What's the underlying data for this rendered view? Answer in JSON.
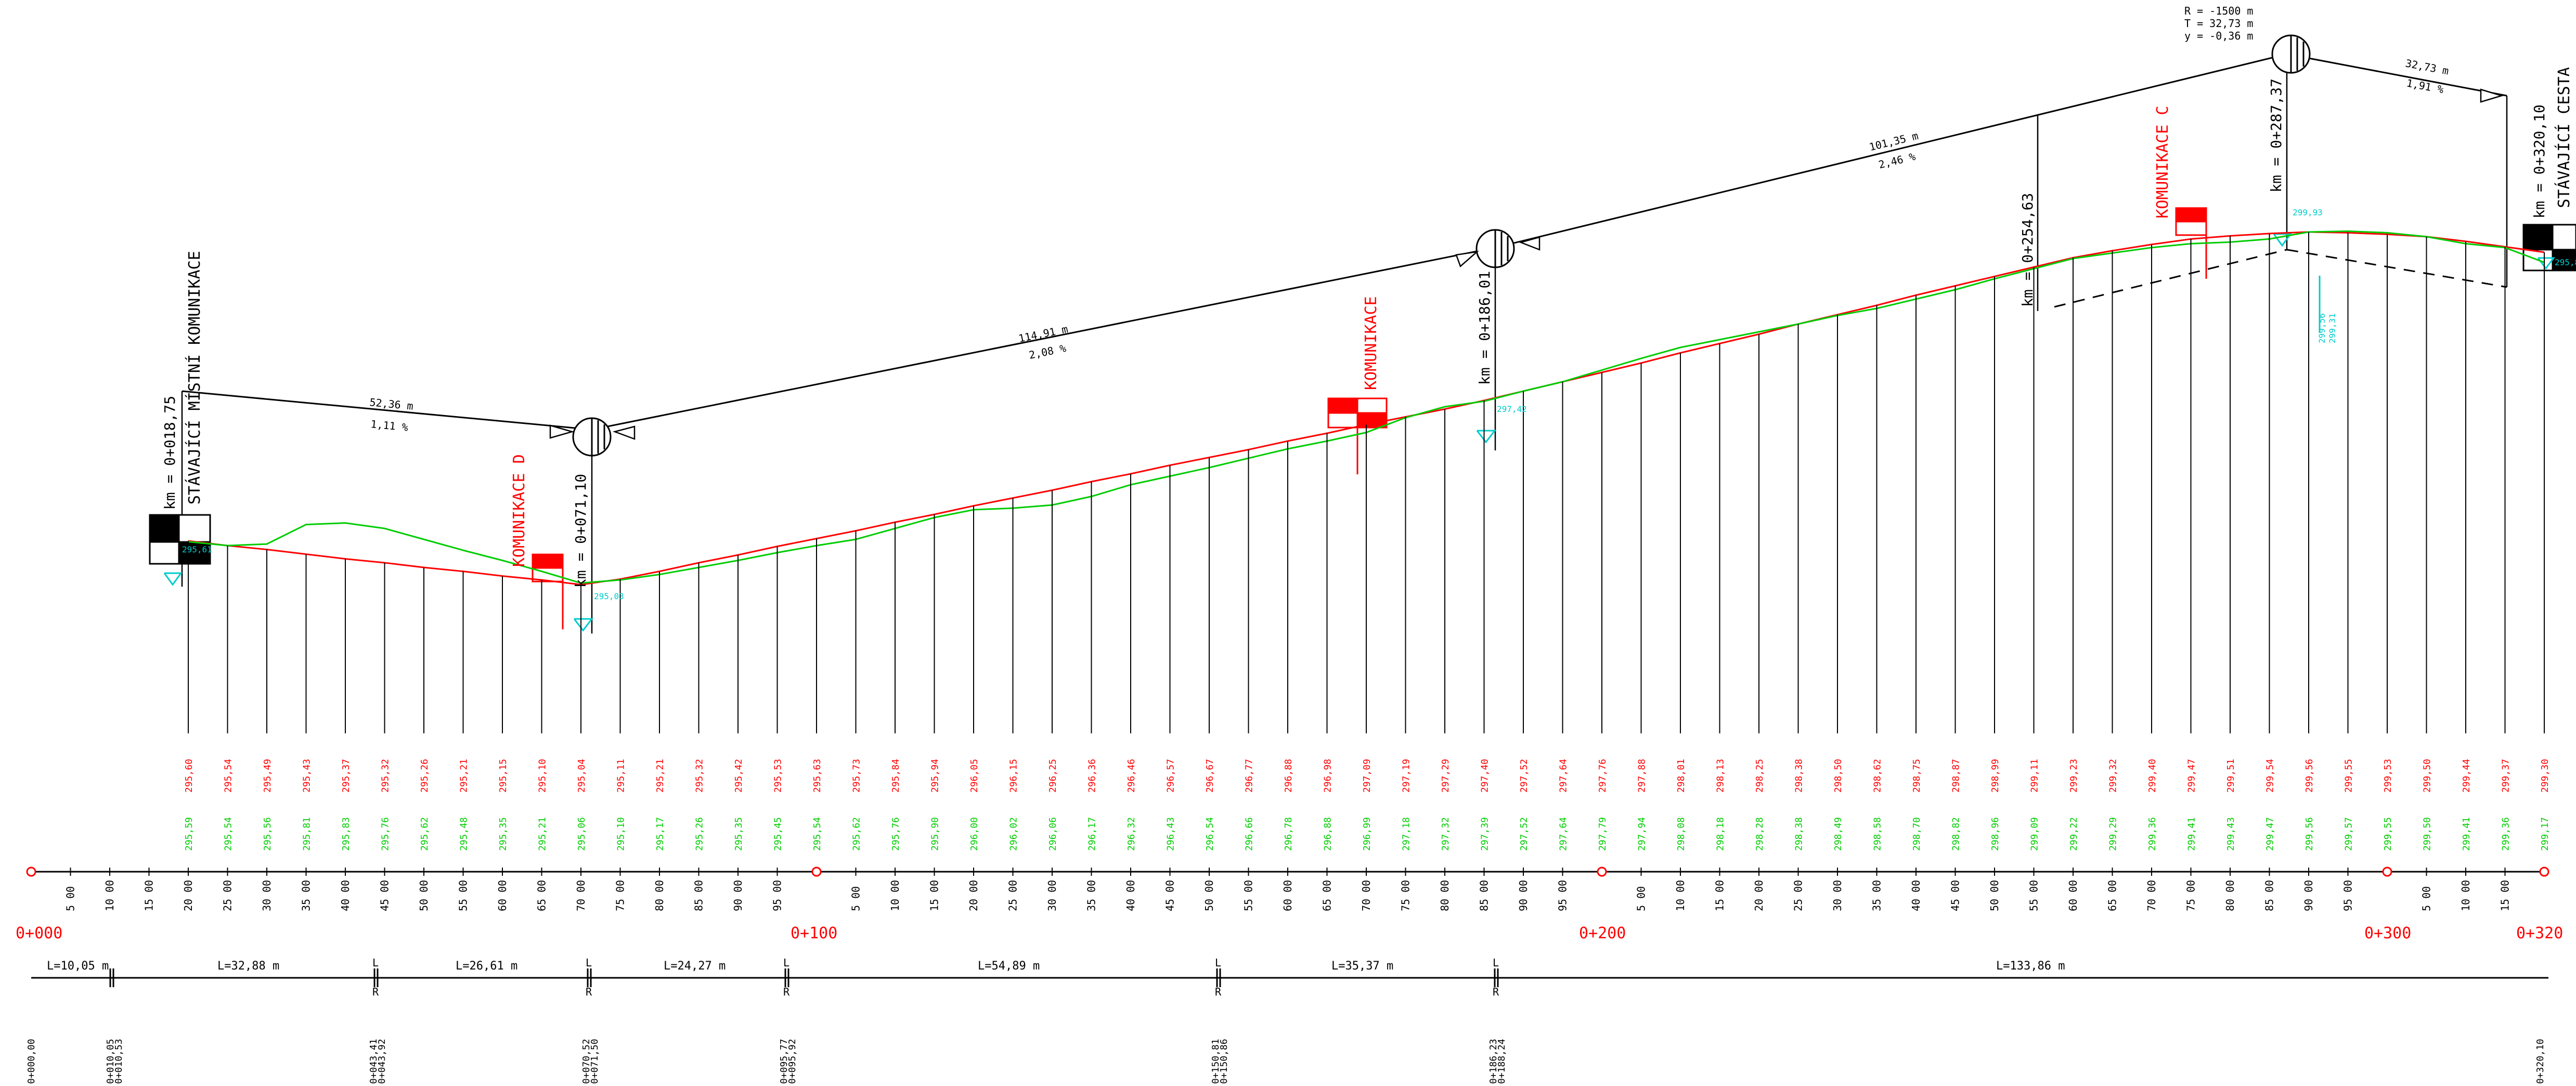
{
  "colors": {
    "line": "#000000",
    "design": "#ff0000",
    "terrain": "#00cc00",
    "cyan": "#00cccc",
    "stationing": "#ff0000"
  },
  "profile": {
    "stations": [
      20,
      25,
      30,
      35,
      40,
      45,
      50,
      55,
      60,
      65,
      70,
      75,
      80,
      85,
      90,
      95,
      100,
      105,
      110,
      115,
      120,
      125,
      130,
      135,
      140,
      145,
      150,
      155,
      160,
      165,
      170,
      175,
      180,
      185,
      190,
      195,
      200,
      205,
      210,
      215,
      220,
      225,
      230,
      235,
      240,
      245,
      250,
      255,
      260,
      265,
      270,
      275,
      280,
      285,
      290,
      295,
      300,
      305,
      310,
      315,
      320
    ],
    "design_elev": [
      "295,60",
      "295,54",
      "295,49",
      "295,43",
      "295,37",
      "295,32",
      "295,26",
      "295,21",
      "295,15",
      "295,10",
      "295,04",
      "295,11",
      "295,21",
      "295,32",
      "295,42",
      "295,53",
      "295,63",
      "295,73",
      "295,84",
      "295,94",
      "296,05",
      "296,15",
      "296,25",
      "296,36",
      "296,46",
      "296,57",
      "296,67",
      "296,77",
      "296,88",
      "296,98",
      "297,09",
      "297,19",
      "297,29",
      "297,40",
      "297,52",
      "297,64",
      "297,76",
      "297,88",
      "298,01",
      "298,13",
      "298,25",
      "298,38",
      "298,50",
      "298,62",
      "298,75",
      "298,87",
      "298,99",
      "299,11",
      "299,23",
      "299,32",
      "299,40",
      "299,47",
      "299,51",
      "299,54",
      "299,56",
      "299,55",
      "299,53",
      "299,50",
      "299,44",
      "299,37",
      "299,30"
    ],
    "terrain_elev": [
      "295,59",
      "295,54",
      "295,56",
      "295,81",
      "295,83",
      "295,76",
      "295,62",
      "295,48",
      "295,35",
      "295,21",
      "295,06",
      "295,10",
      "295,17",
      "295,26",
      "295,35",
      "295,45",
      "295,54",
      "295,62",
      "295,76",
      "295,90",
      "296,00",
      "296,02",
      "296,06",
      "296,17",
      "296,32",
      "296,43",
      "296,54",
      "296,66",
      "296,78",
      "296,88",
      "296,99",
      "297,18",
      "297,32",
      "297,39",
      "297,52",
      "297,64",
      "297,79",
      "297,94",
      "298,08",
      "298,18",
      "298,28",
      "298,38",
      "298,49",
      "298,58",
      "298,70",
      "298,82",
      "298,96",
      "299,09",
      "299,22",
      "299,29",
      "299,36",
      "299,41",
      "299,43",
      "299,47",
      "299,56",
      "299,57",
      "299,55",
      "299,50",
      "299,41",
      "299,36",
      "299,17"
    ]
  },
  "chainage": {
    "sub_labels": [
      "5 00",
      "10 00",
      "15 00",
      "20 00",
      "25 00",
      "30 00",
      "35 00",
      "40 00",
      "45 00",
      "50 00",
      "55 00",
      "60 00",
      "65 00",
      "70 00",
      "75 00",
      "80 00",
      "85 00",
      "90 00",
      "95 00"
    ],
    "main_labels": [
      "0+000",
      "0+100",
      "0+200",
      "0+300",
      "0+320"
    ]
  },
  "alignment": {
    "segments": [
      "L=10,05 m",
      "L=32,88 m",
      "L=26,61 m",
      "L=24,27 m",
      "L=54,89 m",
      "L=35,37 m",
      "L=133,86 m"
    ],
    "point_labels": [
      "0+000,00",
      "0+010,05\n0+010,53",
      "0+043,41\n0+043,92",
      "0+070,52\n0+071,50",
      "0+095,77\n0+095,92",
      "0+150,81\n0+150,86",
      "0+186,23\n0+188,24",
      "0+320,10"
    ],
    "markers": [
      "L",
      "R"
    ]
  },
  "vertical": {
    "km_labels": [
      "km = 0+018,75",
      "km = 0+071,10",
      "km = 0+186,01",
      "km = 0+254,63",
      "km = 0+287,37",
      "km = 0+320,10"
    ],
    "grades": [
      {
        "length": "52,36 m",
        "slope": "1,11 %"
      },
      {
        "length": "114,91 m",
        "slope": "2,08 %"
      },
      {
        "length": "101,35 m",
        "slope": "2,46 %"
      },
      {
        "length": "32,73 m",
        "slope": "1,91 %"
      }
    ],
    "curve": {
      "r": "R = -1500 m",
      "t": "T = 32,73 m",
      "y": "y = -0,36 m"
    },
    "cyan_elev": [
      "295,61",
      "295,03",
      "297,42",
      "299,93",
      "295,8"
    ],
    "cyan_pair": [
      "299,56",
      "299,31"
    ]
  },
  "labels": {
    "existing_local": "STÁVAJÍCÍ MÍSTNÍ KOMUNIKACE",
    "existing_road": "STÁVAJÍCÍ CESTA",
    "comm_d": "KOMUNIKACE D",
    "comm_main": "KOMUNIKACE",
    "comm_c": "KOMUNIKACE C"
  }
}
